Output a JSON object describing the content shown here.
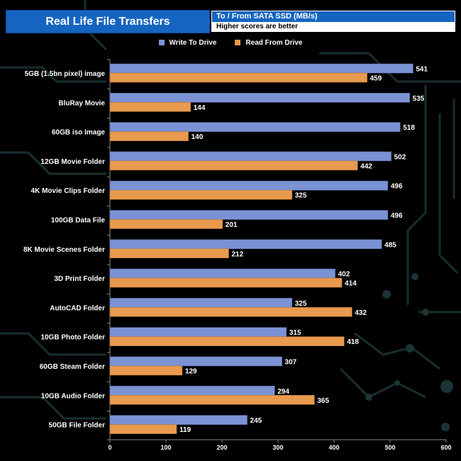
{
  "header": {
    "title": "Real Life File Transfers",
    "subtitle": "To /  From SATA SSD (MB/s)",
    "note": "Higher scores are better"
  },
  "colors": {
    "write": "#7b93d4",
    "read": "#e89a4e",
    "title_bg": "#1565c0",
    "deco": "#1b3436"
  },
  "chart_data": {
    "type": "bar",
    "orientation": "horizontal",
    "title": "Real Life File Transfers",
    "subtitle": "To /  From SATA SSD (MB/s)",
    "categories": [
      "5GB (1.5bn pixel) image",
      "BluRay Movie",
      "60GB iso Image",
      "12GB Movie Folder",
      "4K Movie Clips Folder",
      "100GB Data File",
      "8K Movie Scenes Folder",
      "3D Print Folder",
      "AutoCAD Folder",
      "10GB Photo Folder",
      "60GB Steam Folder",
      "10GB Audio Folder",
      "50GB File Folder"
    ],
    "series": [
      {
        "name": "Write To  Drive",
        "values": [
          541,
          535,
          518,
          502,
          496,
          496,
          485,
          402,
          325,
          315,
          307,
          294,
          245
        ]
      },
      {
        "name": "Read From  Drive",
        "values": [
          459,
          144,
          140,
          442,
          325,
          201,
          212,
          414,
          432,
          418,
          129,
          365,
          119
        ]
      }
    ],
    "xlim": [
      0,
      600
    ],
    "xticks": [
      0,
      100,
      200,
      300,
      400,
      500,
      600
    ],
    "xlabel": "",
    "ylabel": "",
    "legend_position": "top",
    "grid": false
  }
}
